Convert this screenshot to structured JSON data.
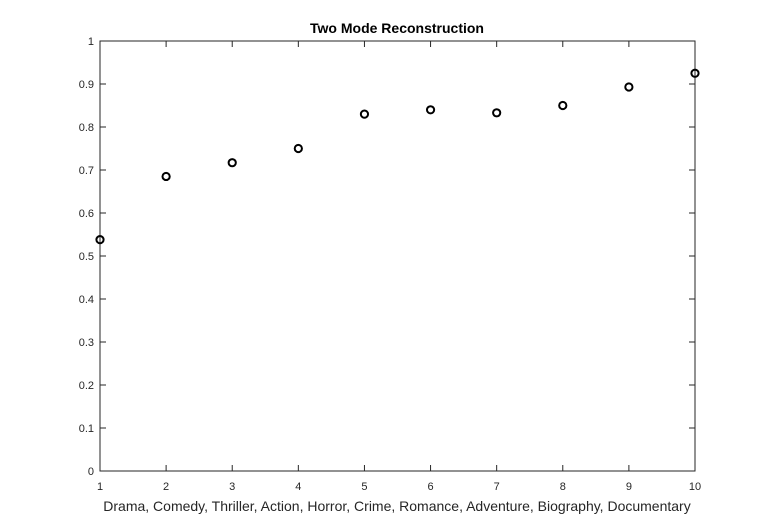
{
  "chart_data": {
    "type": "scatter",
    "title": "Two Mode Reconstruction",
    "xlabel": "Drama, Comedy, Thriller, Action, Horror, Crime, Romance, Adventure, Biography, Documentary",
    "ylabel": "",
    "xlim": [
      1,
      10
    ],
    "ylim": [
      0,
      1
    ],
    "xticks": [
      1,
      2,
      3,
      4,
      5,
      6,
      7,
      8,
      9,
      10
    ],
    "xtick_labels": [
      "1",
      "2",
      "3",
      "4",
      "5",
      "6",
      "7",
      "8",
      "9",
      "10"
    ],
    "yticks": [
      0,
      0.1,
      0.2,
      0.3,
      0.4,
      0.5,
      0.6,
      0.7,
      0.8,
      0.9,
      1
    ],
    "ytick_labels": [
      "0",
      "0.1",
      "0.2",
      "0.3",
      "0.4",
      "0.5",
      "0.6",
      "0.7",
      "0.8",
      "0.9",
      "1"
    ],
    "grid": false,
    "marker": "circle-open",
    "marker_color": "#000000",
    "axis_color": "#262626",
    "series": [
      {
        "x": [
          1,
          2,
          3,
          4,
          5,
          6,
          7,
          8,
          9,
          10
        ],
        "values": [
          0.538,
          0.685,
          0.717,
          0.75,
          0.83,
          0.84,
          0.833,
          0.85,
          0.893,
          0.925
        ]
      }
    ]
  }
}
